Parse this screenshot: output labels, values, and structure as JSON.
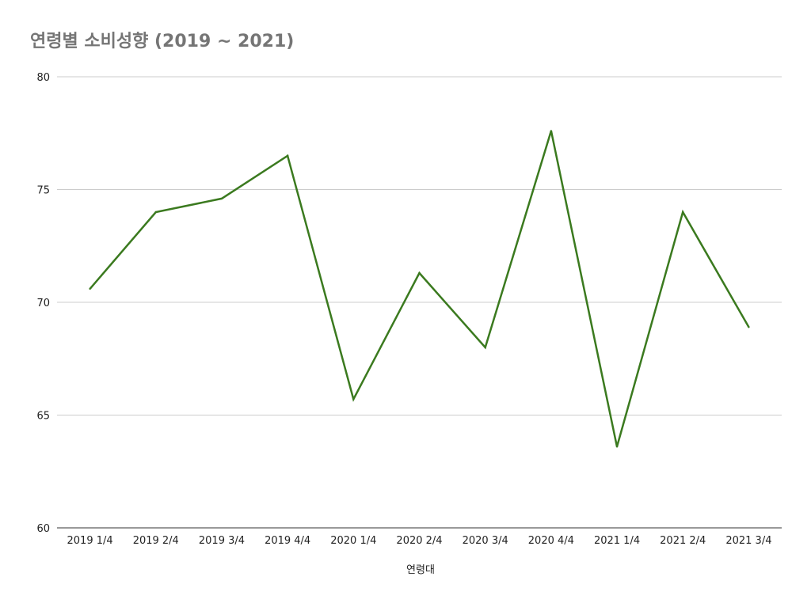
{
  "chart_data": {
    "type": "line",
    "title": "연령별 소비성향 (2019 ~ 2021)",
    "xlabel": "연령대",
    "ylabel": "",
    "ylim": [
      60,
      80
    ],
    "yticks": [
      "60",
      "65",
      "70",
      "75",
      "80"
    ],
    "categories": [
      "2019 1/4",
      "2019 2/4",
      "2019 3/4",
      "2019 4/4",
      "2020 1/4",
      "2020 2/4",
      "2020 3/4",
      "2020 4/4",
      "2021 1/4",
      "2021 2/4",
      "2021 3/4"
    ],
    "series": [
      {
        "values": [
          70.6,
          74.0,
          74.6,
          76.5,
          65.7,
          71.3,
          68.0,
          77.6,
          63.6,
          74.0,
          68.9
        ],
        "color": "#3b7a1f"
      }
    ],
    "grid": true,
    "legend": "none"
  }
}
